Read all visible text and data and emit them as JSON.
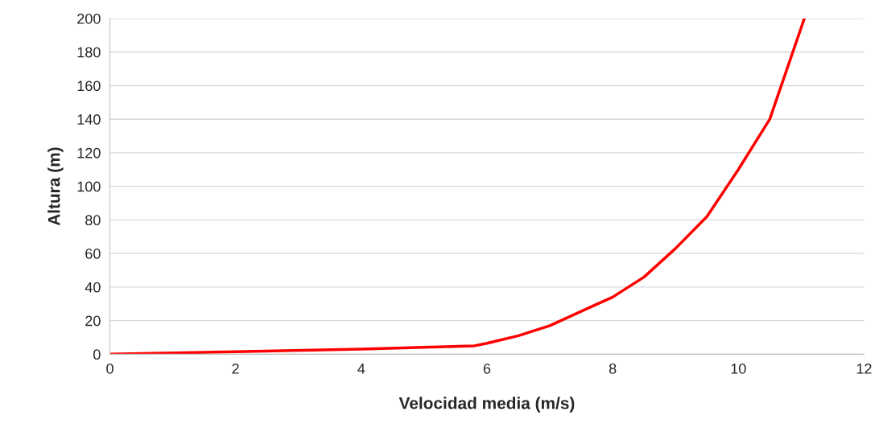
{
  "chart_data": {
    "type": "line",
    "xlabel": "Velocidad media (m/s)",
    "ylabel": "Altura (m)",
    "series": [
      {
        "color": "#ff0000",
        "x": [
          0,
          2,
          4,
          5.8,
          6,
          6.5,
          7,
          7.7,
          8,
          8.5,
          9,
          9.5,
          10,
          10.5,
          11.05
        ],
        "values": [
          0,
          1.5,
          3,
          5,
          6.5,
          11,
          17,
          29,
          34,
          46,
          63,
          82,
          110,
          140,
          200
        ]
      }
    ],
    "xlim": [
      0,
      12
    ],
    "xticks": [
      0,
      2,
      4,
      6,
      8,
      10,
      12
    ],
    "ylim": [
      0,
      200
    ],
    "yticks": [
      0,
      20,
      40,
      60,
      80,
      100,
      120,
      140,
      160,
      180,
      200
    ],
    "grid": "y",
    "line_style": "solid",
    "marker": "none"
  }
}
